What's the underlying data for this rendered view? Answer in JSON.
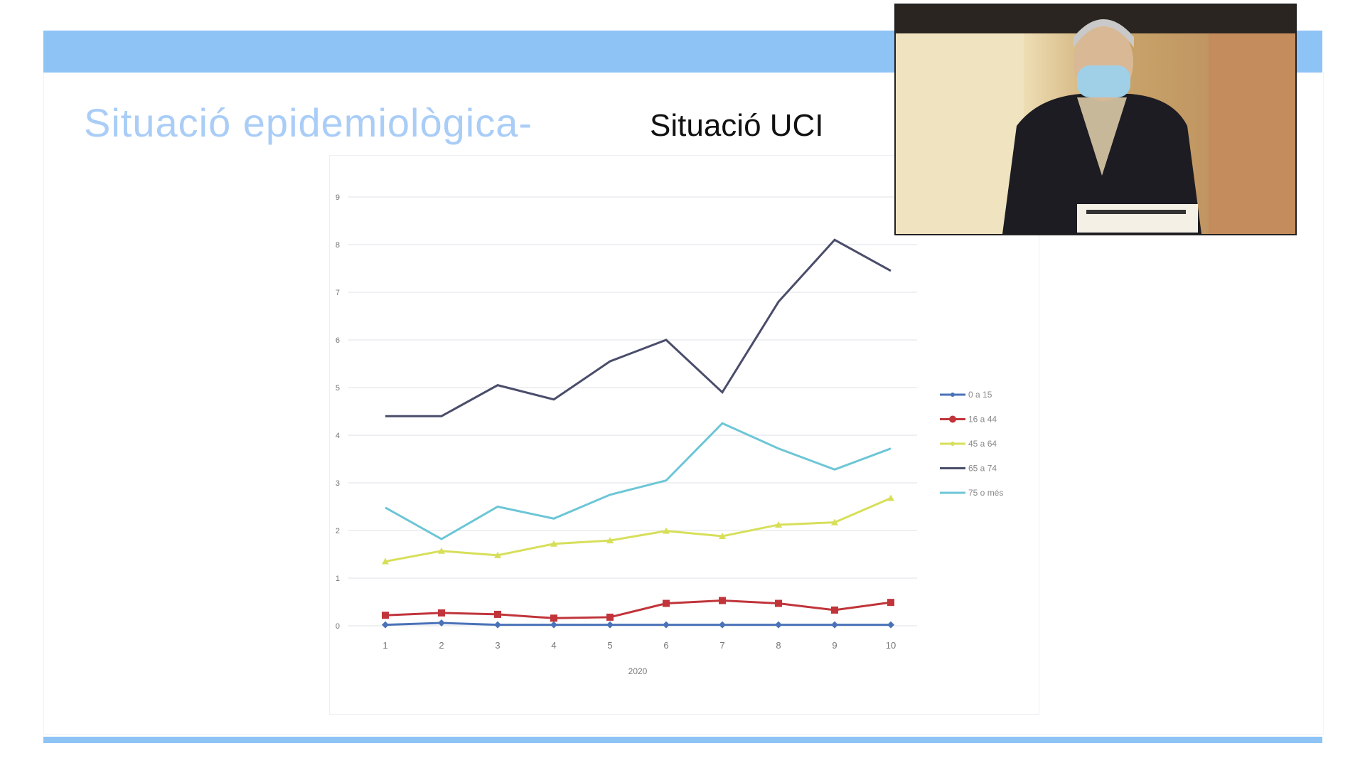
{
  "slide": {
    "title_main": "Situació epidemiològica-",
    "title_sub": "Situació UCI"
  },
  "video": {
    "icon": "speaker-video-feed"
  },
  "chart_data": {
    "type": "line",
    "title": "",
    "xlabel": "2020",
    "ylabel": "",
    "x": [
      1,
      2,
      3,
      4,
      5,
      6,
      7,
      8,
      9,
      10
    ],
    "yticks": [
      0,
      1,
      2,
      3,
      4,
      5,
      6,
      7,
      8,
      9
    ],
    "ylim": [
      0,
      9
    ],
    "grid": true,
    "legend_position": "right",
    "series": [
      {
        "name": "0 a 15",
        "color": "#4a72b8",
        "marker": "diamond",
        "values": [
          0.02,
          0.06,
          0.02,
          0.02,
          0.02,
          0.02,
          0.02,
          0.02,
          0.02,
          0.02
        ]
      },
      {
        "name": "16 a 44",
        "color": "#c0343a",
        "marker": "square",
        "values": [
          0.22,
          0.27,
          0.24,
          0.16,
          0.18,
          0.47,
          0.53,
          0.47,
          0.33,
          0.49
        ]
      },
      {
        "name": "45 a 64",
        "color": "#d7df5a",
        "marker": "triangle",
        "values": [
          1.35,
          1.57,
          1.48,
          1.72,
          1.79,
          1.99,
          1.88,
          2.12,
          2.17,
          2.68
        ]
      },
      {
        "name": "65 a 74",
        "color": "#4a4d6a",
        "marker": "none",
        "values": [
          4.4,
          4.4,
          5.05,
          4.75,
          5.55,
          6.0,
          4.9,
          6.8,
          8.1,
          7.45
        ]
      },
      {
        "name": "75 o més",
        "color": "#6cc6d6",
        "marker": "none",
        "values": [
          2.48,
          1.82,
          2.5,
          2.25,
          2.75,
          3.05,
          4.25,
          3.72,
          3.28,
          3.72
        ]
      }
    ]
  }
}
